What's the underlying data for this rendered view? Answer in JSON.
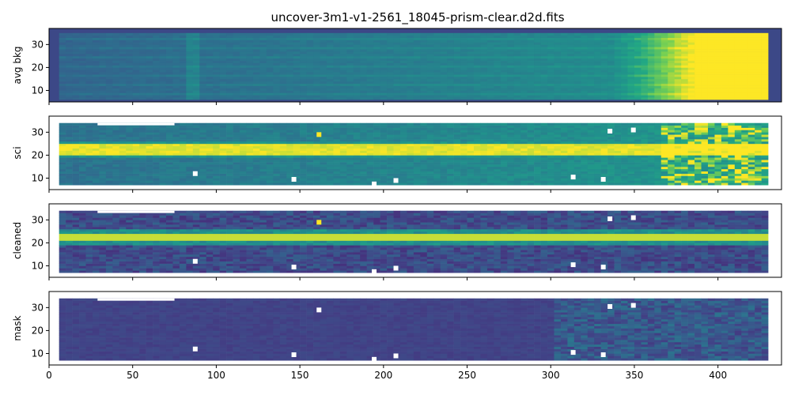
{
  "figure": {
    "title": "uncover-3m1-v1-2561_18045-prism-clear.d2d.fits"
  },
  "chart_data": [
    {
      "type": "heatmap",
      "ylabel": "avg bkg",
      "xlim": [
        0,
        438
      ],
      "ylim": [
        5,
        37
      ],
      "x_ticks": [
        0,
        50,
        100,
        150,
        200,
        250,
        300,
        350,
        400
      ],
      "y_ticks": [
        10,
        20,
        30
      ],
      "show_x_ticklabels": false,
      "colormap": "viridis",
      "valid_x_range": [
        6,
        427
      ],
      "valid_y_range": [
        6,
        35
      ]
    },
    {
      "type": "heatmap",
      "ylabel": "sci",
      "xlim": [
        0,
        438
      ],
      "ylim": [
        5,
        37
      ],
      "x_ticks": [
        0,
        50,
        100,
        150,
        200,
        250,
        300,
        350,
        400
      ],
      "y_ticks": [
        10,
        20,
        30
      ],
      "show_x_ticklabels": false,
      "colormap": "viridis",
      "trace_row": 22,
      "valid_x_range": [
        6,
        427
      ],
      "valid_y_range": [
        7,
        34
      ]
    },
    {
      "type": "heatmap",
      "ylabel": "cleaned",
      "xlim": [
        0,
        438
      ],
      "ylim": [
        5,
        37
      ],
      "x_ticks": [
        0,
        50,
        100,
        150,
        200,
        250,
        300,
        350,
        400
      ],
      "y_ticks": [
        10,
        20,
        30
      ],
      "show_x_ticklabels": false,
      "colormap": "viridis",
      "trace_row": 22,
      "valid_x_range": [
        6,
        427
      ],
      "valid_y_range": [
        7,
        34
      ]
    },
    {
      "type": "heatmap",
      "ylabel": "mask",
      "xlim": [
        0,
        438
      ],
      "ylim": [
        5,
        37
      ],
      "x_ticks": [
        0,
        50,
        100,
        150,
        200,
        250,
        300,
        350,
        400
      ],
      "y_ticks": [
        10,
        20,
        30
      ],
      "show_x_ticklabels": true,
      "colormap": "viridis",
      "valid_x_range": [
        6,
        427
      ],
      "valid_y_range": [
        7,
        34
      ]
    }
  ]
}
